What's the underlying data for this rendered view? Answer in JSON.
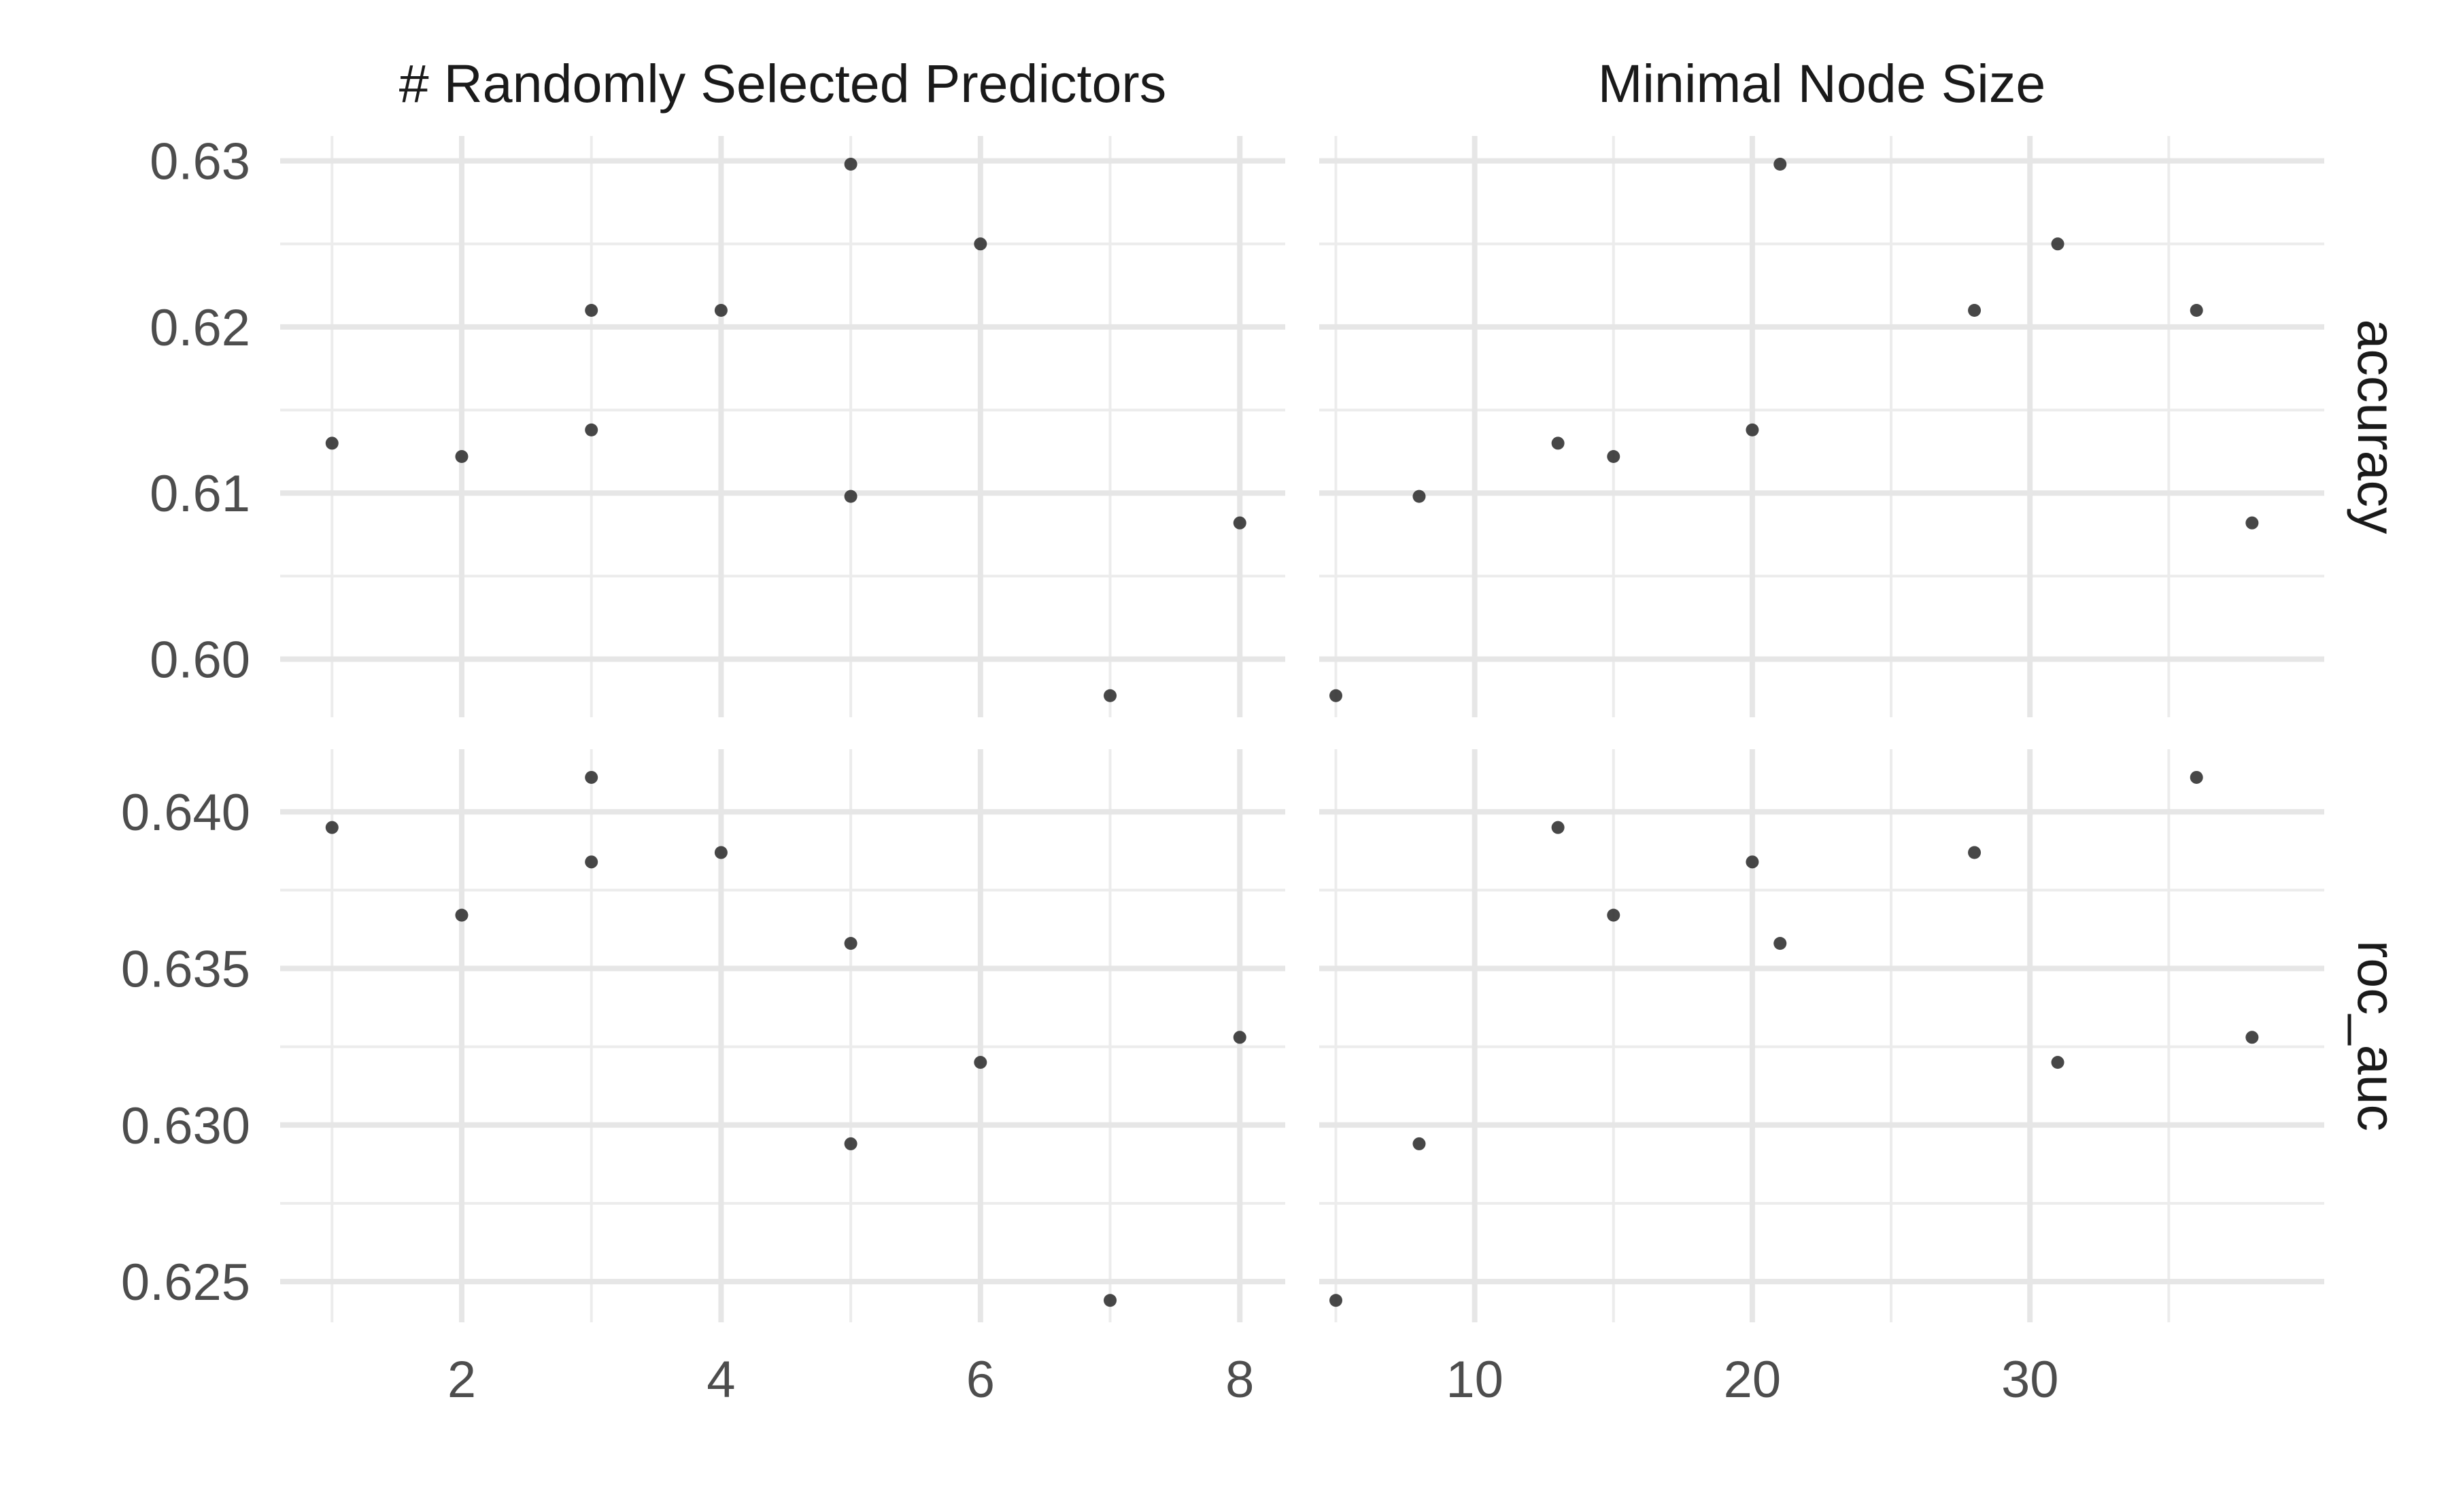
{
  "chart_data": {
    "type": "scatter",
    "facet_columns": [
      "# Randomly Selected Predictors",
      "Minimal Node Size"
    ],
    "facet_rows": [
      "accuracy",
      "roc_auc"
    ],
    "x_ticks": [
      [
        2,
        4,
        6,
        8
      ],
      [
        10,
        20,
        30
      ]
    ],
    "x_minor": [
      [
        1,
        3,
        5,
        7
      ],
      [
        5,
        15,
        25,
        35
      ]
    ],
    "xlim": [
      [
        0.6,
        8.35
      ],
      [
        4.4,
        40.6
      ]
    ],
    "y_ticks": [
      [
        0.6,
        0.61,
        0.62,
        0.63
      ],
      [
        0.625,
        0.63,
        0.635,
        0.64
      ]
    ],
    "y_tick_labels": [
      [
        "0.60",
        "0.61",
        "0.62",
        "0.63"
      ],
      [
        "0.625",
        "0.630",
        "0.635",
        "0.640"
      ]
    ],
    "y_minor": [
      [
        0.605,
        0.615,
        0.625
      ],
      [
        0.6275,
        0.6325,
        0.6375
      ]
    ],
    "ylim": [
      [
        0.5965,
        0.6315
      ],
      [
        0.6237,
        0.642
      ]
    ],
    "points": {
      "accuracy": [
        [
          [
            1,
            0.613
          ],
          [
            2,
            0.6122
          ],
          [
            3,
            0.621
          ],
          [
            3,
            0.6138
          ],
          [
            4,
            0.621
          ],
          [
            5,
            0.6298
          ],
          [
            5,
            0.6098
          ],
          [
            6,
            0.625
          ],
          [
            7,
            0.5978
          ],
          [
            8,
            0.6082
          ]
        ],
        [
          [
            5,
            0.5978
          ],
          [
            8,
            0.6098
          ],
          [
            13,
            0.613
          ],
          [
            15,
            0.6122
          ],
          [
            20,
            0.6138
          ],
          [
            21,
            0.6298
          ],
          [
            28,
            0.621
          ],
          [
            31,
            0.625
          ],
          [
            36,
            0.621
          ],
          [
            38,
            0.6082
          ]
        ]
      ],
      "roc_auc": [
        [
          [
            1,
            0.6395
          ],
          [
            2,
            0.6367
          ],
          [
            3,
            0.6411
          ],
          [
            3,
            0.6384
          ],
          [
            4,
            0.6387
          ],
          [
            5,
            0.6358
          ],
          [
            5,
            0.6294
          ],
          [
            6,
            0.632
          ],
          [
            7,
            0.6244
          ],
          [
            8,
            0.6328
          ]
        ],
        [
          [
            5,
            0.6244
          ],
          [
            8,
            0.6294
          ],
          [
            13,
            0.6395
          ],
          [
            15,
            0.6367
          ],
          [
            20,
            0.6384
          ],
          [
            21,
            0.6358
          ],
          [
            28,
            0.6387
          ],
          [
            31,
            0.632
          ],
          [
            36,
            0.6411
          ],
          [
            38,
            0.6328
          ]
        ]
      ]
    },
    "grid": true,
    "legend": "none"
  }
}
